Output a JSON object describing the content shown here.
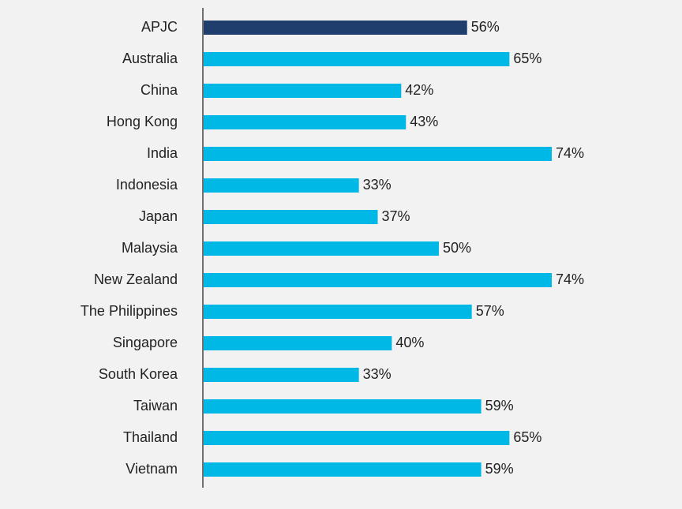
{
  "chart_data": {
    "type": "barh",
    "categories": [
      "APJC",
      "Australia",
      "China",
      "Hong Kong",
      "India",
      "Indonesia",
      "Japan",
      "Malaysia",
      "New Zealand",
      "The Philippines",
      "Singapore",
      "South Korea",
      "Taiwan",
      "Thailand",
      "Vietnam"
    ],
    "values": [
      56,
      65,
      42,
      43,
      74,
      33,
      37,
      50,
      74,
      57,
      40,
      33,
      59,
      65,
      59
    ],
    "value_labels": [
      "56%",
      "65%",
      "42%",
      "43%",
      "74%",
      "33%",
      "37%",
      "50%",
      "74%",
      "57%",
      "40%",
      "33%",
      "59%",
      "65%",
      "59%"
    ],
    "colors": [
      "#1f3e6d",
      "#00b8e6",
      "#00b8e6",
      "#00b8e6",
      "#00b8e6",
      "#00b8e6",
      "#00b8e6",
      "#00b8e6",
      "#00b8e6",
      "#00b8e6",
      "#00b8e6",
      "#00b8e6",
      "#00b8e6",
      "#00b8e6",
      "#00b8e6"
    ]
  }
}
